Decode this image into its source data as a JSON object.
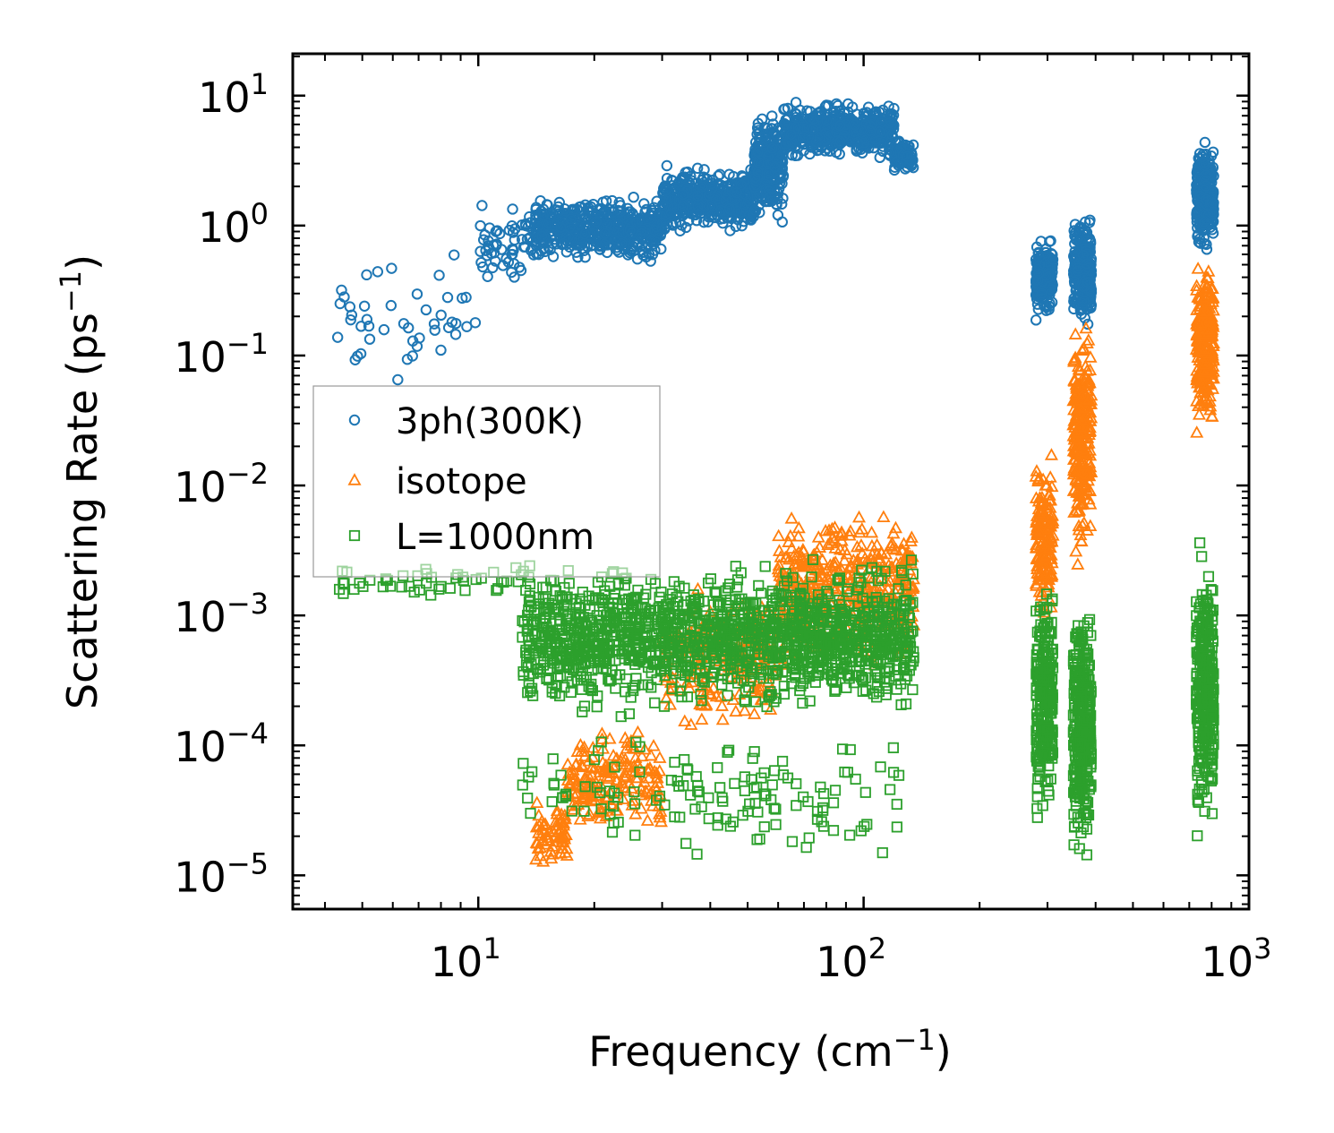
{
  "chart_data": {
    "type": "scatter",
    "xscale": "log",
    "yscale": "log",
    "xlim": [
      3.3,
      1000
    ],
    "ylim": [
      5.5e-06,
      21
    ],
    "xlabel": "Frequency (cm",
    "xlabel_sup": "−1",
    "xlabel_end": ")",
    "ylabel": "Scattering Rate (ps",
    "ylabel_sup": "−1",
    "ylabel_end": ")",
    "x_ticks": [
      {
        "base": "10",
        "exp": "1"
      },
      {
        "base": "10",
        "exp": "2"
      },
      {
        "base": "10",
        "exp": "3"
      }
    ],
    "y_ticks": [
      {
        "base": "10",
        "exp": "1"
      },
      {
        "base": "10",
        "exp": "0"
      },
      {
        "base": "10",
        "exp": "−1"
      },
      {
        "base": "10",
        "exp": "−2"
      },
      {
        "base": "10",
        "exp": "−3"
      },
      {
        "base": "10",
        "exp": "−4"
      },
      {
        "base": "10",
        "exp": "−5"
      }
    ],
    "legend_position": "center-left",
    "series": [
      {
        "name": "3ph(300K)",
        "marker": "circle",
        "color": "#1f77b4",
        "clusters": [
          {
            "x": [
              4.3,
              10
            ],
            "y": [
              0.05,
              0.8
            ],
            "n": 45
          },
          {
            "x": [
              10,
              14
            ],
            "y": [
              0.3,
              1.8
            ],
            "n": 60
          },
          {
            "x": [
              14,
              30
            ],
            "y": [
              0.5,
              1.8
            ],
            "n": 500
          },
          {
            "x": [
              30,
              52
            ],
            "y": [
              0.8,
              3.0
            ],
            "n": 450
          },
          {
            "x": [
              52,
              62
            ],
            "y": [
              1.0,
              8.0
            ],
            "n": 300
          },
          {
            "x": [
              62,
              120
            ],
            "y": [
              3.0,
              9.5
            ],
            "n": 500
          },
          {
            "x": [
              120,
              135
            ],
            "y": [
              2.5,
              5.0
            ],
            "n": 80
          },
          {
            "x": [
              280,
              310
            ],
            "y": [
              0.17,
              0.9
            ],
            "n": 220
          },
          {
            "x": [
              350,
              390
            ],
            "y": [
              0.15,
              1.5
            ],
            "n": 260
          },
          {
            "x": [
              730,
              810
            ],
            "y": [
              0.6,
              4.8
            ],
            "n": 240
          }
        ]
      },
      {
        "name": "isotope",
        "marker": "triangle",
        "color": "#ff7f0e",
        "clusters": [
          {
            "x": [
              14,
              17
            ],
            "y": [
              1e-05,
              4e-05
            ],
            "n": 60
          },
          {
            "x": [
              17,
              30
            ],
            "y": [
              2e-05,
              0.00015
            ],
            "n": 180
          },
          {
            "x": [
              30,
              60
            ],
            "y": [
              0.0001,
              0.002
            ],
            "n": 200
          },
          {
            "x": [
              60,
              135
            ],
            "y": [
              0.0003,
              0.009
            ],
            "n": 420
          },
          {
            "x": [
              280,
              310
            ],
            "y": [
              0.0008,
              0.02
            ],
            "n": 160
          },
          {
            "x": [
              350,
              390
            ],
            "y": [
              0.002,
              0.3
            ],
            "n": 260
          },
          {
            "x": [
              730,
              810
            ],
            "y": [
              0.02,
              0.8
            ],
            "n": 220
          }
        ]
      },
      {
        "name": "L=1000nm",
        "marker": "square",
        "color": "#2ca02c",
        "clusters": [
          {
            "x": [
              4.3,
              13
            ],
            "y": [
              0.0013,
              0.0025
            ],
            "n": 45
          },
          {
            "x": [
              13,
              135
            ],
            "y": [
              0.00015,
              0.003
            ],
            "n": 1500
          },
          {
            "x": [
              13,
              130
            ],
            "y": [
              1e-05,
              0.00015
            ],
            "n": 140
          },
          {
            "x": [
              280,
              310
            ],
            "y": [
              2e-05,
              0.002
            ],
            "n": 260
          },
          {
            "x": [
              350,
              390
            ],
            "y": [
              1e-05,
              0.002
            ],
            "n": 300
          },
          {
            "x": [
              730,
              810
            ],
            "y": [
              1.3e-05,
              0.005
            ],
            "n": 300
          }
        ]
      }
    ]
  }
}
